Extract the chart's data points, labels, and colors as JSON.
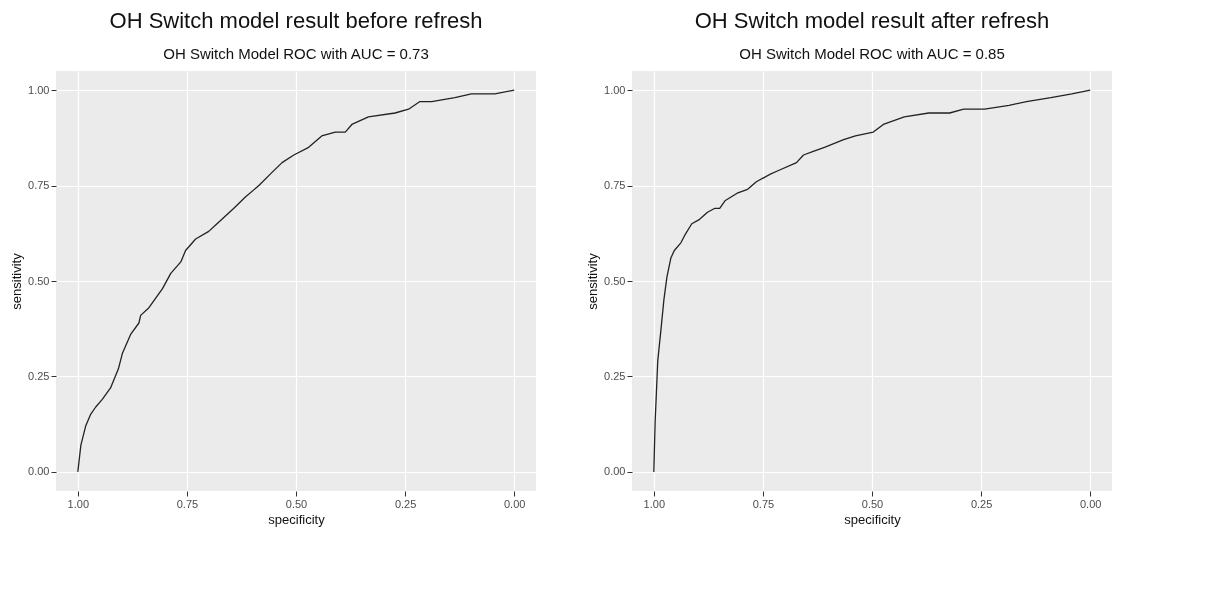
{
  "chart_data": [
    {
      "type": "line",
      "title": "OH Switch model result before refresh",
      "subtitle": "OH Switch Model ROC with AUC = 0.73",
      "xlabel": "specificity",
      "ylabel": "sensitivity",
      "xlim": [
        1.05,
        -0.05
      ],
      "ylim": [
        -0.05,
        1.05
      ],
      "xticks": [
        {
          "value": 1,
          "label": "1.00"
        },
        {
          "value": 0.75,
          "label": "0.75"
        },
        {
          "value": 0.5,
          "label": "0.50"
        },
        {
          "value": 0.25,
          "label": "0.25"
        },
        {
          "value": 0,
          "label": "0.00"
        }
      ],
      "yticks": [
        {
          "value": 0,
          "label": "0.00"
        },
        {
          "value": 0.25,
          "label": "0.25"
        },
        {
          "value": 0.5,
          "label": "0.50"
        },
        {
          "value": 0.75,
          "label": "0.75"
        },
        {
          "value": 1,
          "label": "1.00"
        }
      ],
      "grid": true,
      "series": [
        {
          "color": "#222222",
          "x": [
            1.0,
            0.993,
            0.982,
            0.971,
            0.959,
            0.944,
            0.925,
            0.907,
            0.898,
            0.879,
            0.86,
            0.856,
            0.837,
            0.806,
            0.787,
            0.764,
            0.753,
            0.73,
            0.7,
            0.681,
            0.643,
            0.616,
            0.585,
            0.559,
            0.532,
            0.505,
            0.471,
            0.441,
            0.41,
            0.387,
            0.372,
            0.334,
            0.273,
            0.242,
            0.216,
            0.189,
            0.136,
            0.098,
            0.044,
            0.0
          ],
          "values": [
            0.0,
            0.07,
            0.12,
            0.15,
            0.17,
            0.19,
            0.22,
            0.27,
            0.31,
            0.36,
            0.39,
            0.41,
            0.43,
            0.48,
            0.52,
            0.55,
            0.58,
            0.61,
            0.63,
            0.65,
            0.69,
            0.72,
            0.75,
            0.78,
            0.81,
            0.83,
            0.85,
            0.88,
            0.89,
            0.89,
            0.91,
            0.93,
            0.94,
            0.95,
            0.97,
            0.97,
            0.98,
            0.99,
            0.99,
            1.0
          ]
        }
      ]
    },
    {
      "type": "line",
      "title": "OH Switch model result after refresh",
      "subtitle": "OH Switch Model ROC with AUC = 0.85",
      "xlabel": "specificity",
      "ylabel": "sensitivity",
      "xlim": [
        1.05,
        -0.05
      ],
      "ylim": [
        -0.05,
        1.05
      ],
      "xticks": [
        {
          "value": 1,
          "label": "1.00"
        },
        {
          "value": 0.75,
          "label": "0.75"
        },
        {
          "value": 0.5,
          "label": "0.50"
        },
        {
          "value": 0.25,
          "label": "0.25"
        },
        {
          "value": 0,
          "label": "0.00"
        }
      ],
      "yticks": [
        {
          "value": 0,
          "label": "0.00"
        },
        {
          "value": 0.25,
          "label": "0.25"
        },
        {
          "value": 0.5,
          "label": "0.50"
        },
        {
          "value": 0.75,
          "label": "0.75"
        },
        {
          "value": 1,
          "label": "1.00"
        }
      ],
      "grid": true,
      "series": [
        {
          "color": "#222222",
          "x": [
            1.0,
            0.997,
            0.991,
            0.983,
            0.977,
            0.97,
            0.961,
            0.953,
            0.938,
            0.929,
            0.913,
            0.897,
            0.877,
            0.861,
            0.849,
            0.837,
            0.809,
            0.785,
            0.765,
            0.733,
            0.713,
            0.673,
            0.657,
            0.633,
            0.609,
            0.565,
            0.538,
            0.497,
            0.474,
            0.426,
            0.37,
            0.322,
            0.29,
            0.242,
            0.186,
            0.146,
            0.09,
            0.042,
            0.0
          ],
          "values": [
            0.0,
            0.13,
            0.29,
            0.38,
            0.45,
            0.51,
            0.56,
            0.58,
            0.6,
            0.62,
            0.65,
            0.66,
            0.68,
            0.69,
            0.69,
            0.71,
            0.73,
            0.74,
            0.76,
            0.78,
            0.79,
            0.81,
            0.83,
            0.84,
            0.85,
            0.87,
            0.88,
            0.89,
            0.91,
            0.93,
            0.94,
            0.94,
            0.95,
            0.95,
            0.96,
            0.97,
            0.98,
            0.99,
            1.0
          ]
        }
      ]
    }
  ]
}
